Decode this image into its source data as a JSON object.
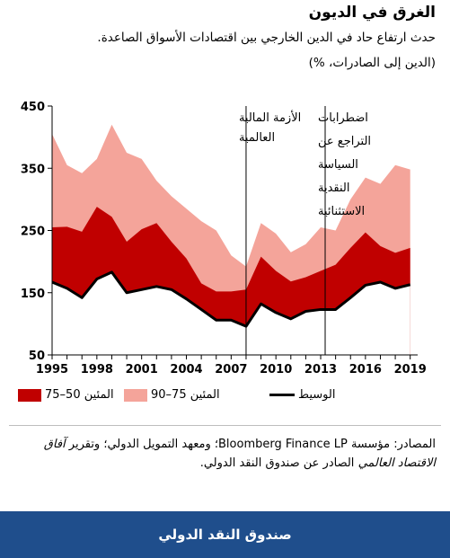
{
  "title": "الغرق في الديون",
  "subtitle": "حدث ارتفاع حاد في الدين الخارجي بين اقتصادات الأسواق الصاعدة.",
  "units": "(الدين إلى الصادرات، %)",
  "annotations": {
    "crisis": [
      "الأزمة المالية",
      "العالمية"
    ],
    "taper": [
      "اضطرابات",
      "التراجع عن",
      "السياسة",
      "النقدية",
      "الاستثنائية"
    ]
  },
  "legend": {
    "median": "الوسيط",
    "p75_90": "المئين 75–90",
    "p50_75": "المئين 50–75"
  },
  "sources": {
    "prefix": "المصادر: مؤسسة Bloomberg Finance LP؛ ومعهد التمويل الدولي؛ وتقرير ",
    "italic": "آفاق الاقتصاد العالمي",
    "suffix": " الصادر عن صندوق النقد الدولي."
  },
  "footer": "صندوق النقد الدولي",
  "colors": {
    "p50_75": "#c00000",
    "p75_90": "#f4a49a",
    "median": "#000000"
  },
  "chart_data": {
    "type": "area",
    "x": [
      1995,
      1996,
      1997,
      1998,
      1999,
      2000,
      2001,
      2002,
      2003,
      2004,
      2005,
      2006,
      2007,
      2008,
      2009,
      2010,
      2011,
      2012,
      2013,
      2014,
      2015,
      2016,
      2017,
      2018,
      2019
    ],
    "xticks": [
      "1995",
      "1998",
      "2001",
      "2004",
      "2007",
      "2010",
      "2013",
      "2016",
      "2019"
    ],
    "xtick_values": [
      1995,
      1998,
      2001,
      2004,
      2007,
      2010,
      2013,
      2016,
      2019
    ],
    "yticks": [
      "450",
      "350",
      "250",
      "150",
      "50"
    ],
    "ytick_values": [
      450,
      350,
      250,
      150,
      50
    ],
    "ylim": [
      50,
      450
    ],
    "xlim": [
      1995,
      2019.5
    ],
    "vlines": [
      2008,
      2013.3
    ],
    "series": [
      {
        "name": "المئين 75–90",
        "values": [
          405,
          355,
          342,
          365,
          420,
          375,
          365,
          330,
          305,
          285,
          265,
          250,
          210,
          192,
          262,
          245,
          215,
          228,
          255,
          250,
          300,
          335,
          325,
          355,
          348
        ]
      },
      {
        "name": "المئين 50–75",
        "values": [
          255,
          256,
          248,
          288,
          272,
          232,
          252,
          262,
          232,
          205,
          165,
          152,
          152,
          155,
          208,
          185,
          168,
          175,
          185,
          195,
          222,
          247,
          225,
          214,
          222
        ]
      },
      {
        "name": "الوسيط",
        "values": [
          167,
          157,
          142,
          172,
          183,
          150,
          155,
          160,
          155,
          140,
          123,
          106,
          106,
          96,
          132,
          118,
          108,
          120,
          123,
          123,
          142,
          162,
          167,
          157,
          163
        ]
      }
    ]
  }
}
